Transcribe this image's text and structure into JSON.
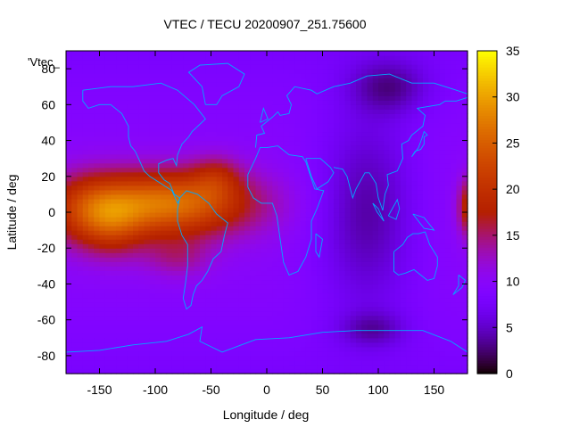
{
  "chart_data": {
    "type": "heatmap",
    "title": "VTEC / TECU 20200907_251.75600",
    "xlabel": "Longitude / deg",
    "ylabel": "Latitude / deg",
    "legend_label": "'Vtec_",
    "xlim": [
      -180,
      180
    ],
    "ylim": [
      -90,
      90
    ],
    "x_ticks": [
      -150,
      -100,
      -50,
      0,
      50,
      100,
      150
    ],
    "y_ticks": [
      -80,
      -60,
      -40,
      -20,
      0,
      20,
      40,
      60,
      80
    ],
    "colorbar": {
      "range": [
        0,
        35
      ],
      "ticks": [
        0,
        5,
        10,
        15,
        20,
        25,
        30,
        35
      ],
      "palette": "gnuplot-pm3d",
      "low_color": "#000000",
      "mid_color": "#7f1fff",
      "high_color": "#ffff20"
    },
    "features": [
      {
        "lon": -90,
        "lat": 5,
        "width_lon": 75,
        "width_lat": 18,
        "peak": 17
      },
      {
        "lon": -160,
        "lat": 0,
        "width_lon": 35,
        "width_lat": 20,
        "peak": 8
      },
      {
        "lon": -135,
        "lat": -8,
        "width_lon": 28,
        "width_lat": 18,
        "peak": 5
      },
      {
        "lon": -45,
        "lat": 20,
        "width_lon": 22,
        "width_lat": 12,
        "peak": 5
      },
      {
        "lon": -80,
        "lat": -25,
        "width_lon": 30,
        "width_lat": 12,
        "peak": 4
      },
      {
        "lon": 185,
        "lat": 3,
        "width_lon": 12,
        "width_lat": 16,
        "peak": 12
      },
      {
        "lon": 90,
        "lat": 0,
        "width_lon": 45,
        "width_lat": 55,
        "peak": -6
      },
      {
        "lon": 110,
        "lat": 70,
        "width_lon": 35,
        "width_lat": 15,
        "peak": -5
      },
      {
        "lon": 95,
        "lat": -65,
        "width_lon": 30,
        "width_lat": 10,
        "peak": -4
      }
    ],
    "background_level": 10,
    "coastline_color": "#00aaff"
  }
}
